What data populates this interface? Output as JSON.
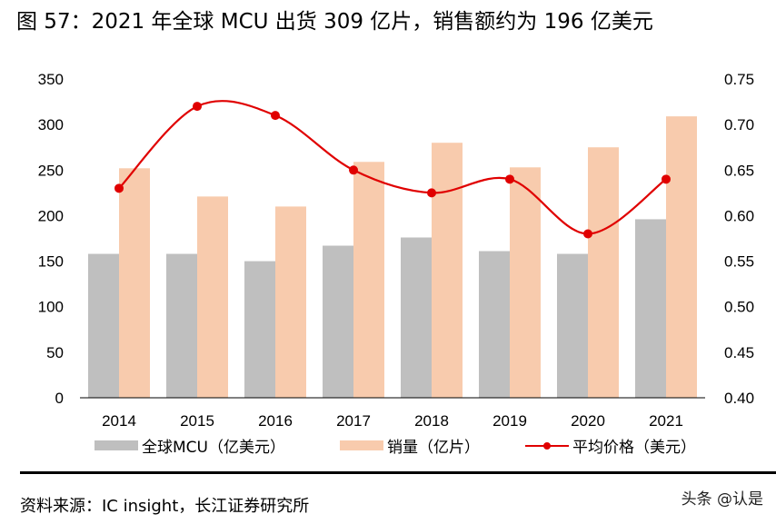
{
  "title": "图 57：2021 年全球 MCU 出货 309 亿片，销售额约为 196 亿美元",
  "chart_data": {
    "type": "bar+line",
    "title": "",
    "categories": [
      "2014",
      "2015",
      "2016",
      "2017",
      "2018",
      "2019",
      "2020",
      "2021"
    ],
    "series": [
      {
        "name": "全球MCU（亿美元）",
        "type": "bar",
        "axis": "left",
        "color": "#BFBFBF",
        "values": [
          158,
          158,
          150,
          167,
          176,
          161,
          158,
          196
        ]
      },
      {
        "name": "销量（亿片）",
        "type": "bar",
        "axis": "left",
        "color": "#F8CBAD",
        "values": [
          252,
          221,
          210,
          259,
          280,
          253,
          275,
          309
        ]
      },
      {
        "name": "平均价格（美元）",
        "type": "line",
        "axis": "right",
        "color": "#E00000",
        "values": [
          0.63,
          0.72,
          0.71,
          0.65,
          0.625,
          0.64,
          0.58,
          0.64
        ]
      }
    ],
    "y_left": {
      "range": [
        0,
        350
      ],
      "ticks": [
        "0",
        "50",
        "100",
        "150",
        "200",
        "250",
        "300",
        "350"
      ]
    },
    "y_right": {
      "range": [
        0.4,
        0.75
      ],
      "ticks": [
        "0.40",
        "0.45",
        "0.50",
        "0.55",
        "0.60",
        "0.65",
        "0.70",
        "0.75"
      ]
    },
    "grid": false,
    "legend": "bottom"
  },
  "source": "资料来源：IC insight，长江证券研究所",
  "watermark": "头条 @认是"
}
